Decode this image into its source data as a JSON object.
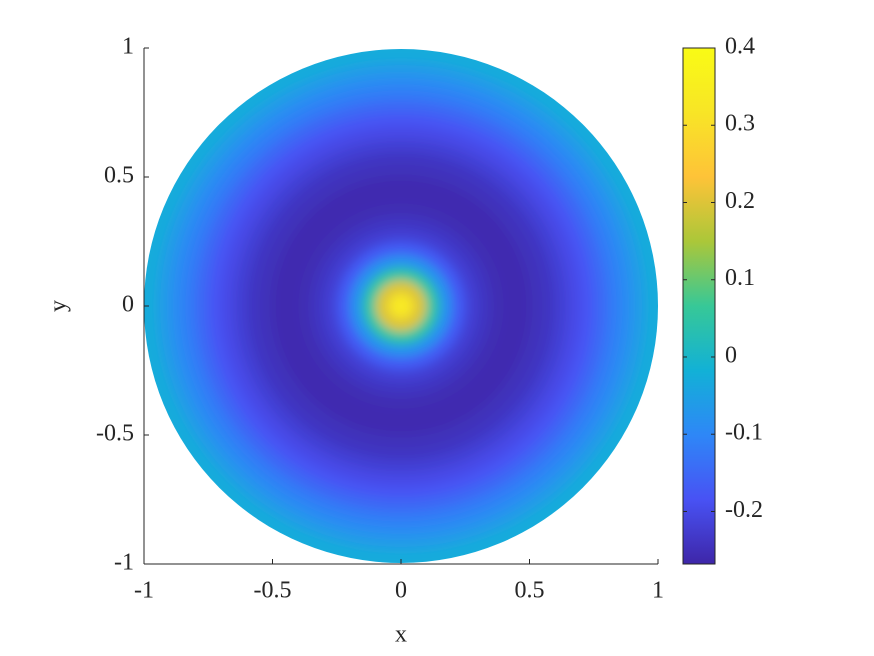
{
  "chart_data": {
    "type": "radial-heatmap",
    "xlabel": "x",
    "ylabel": "y",
    "xlim": [
      -1,
      1
    ],
    "ylim": [
      -1,
      1
    ],
    "xticks": [
      -1,
      -0.5,
      0,
      0.5,
      1
    ],
    "yticks": [
      -1,
      -0.5,
      0,
      0.5,
      1
    ],
    "r": [
      0,
      0.05,
      0.1,
      0.15,
      0.2,
      0.25,
      0.3,
      0.35,
      0.4,
      0.45,
      0.5,
      0.55,
      0.6,
      0.65,
      0.7,
      0.75,
      0.8,
      0.85,
      0.9,
      0.95,
      1
    ],
    "values": [
      0.37,
      0.32,
      0.2,
      0.05,
      -0.08,
      -0.17,
      -0.22,
      -0.24,
      -0.255,
      -0.26,
      -0.26,
      -0.25,
      -0.24,
      -0.22,
      -0.2,
      -0.18,
      -0.15,
      -0.12,
      -0.09,
      -0.06,
      -0.03
    ],
    "colormap": "parula",
    "clim": [
      -0.268,
      0.4
    ],
    "cticks": [
      -0.2,
      -0.1,
      0,
      0.1,
      0.2,
      0.3,
      0.4
    ]
  }
}
